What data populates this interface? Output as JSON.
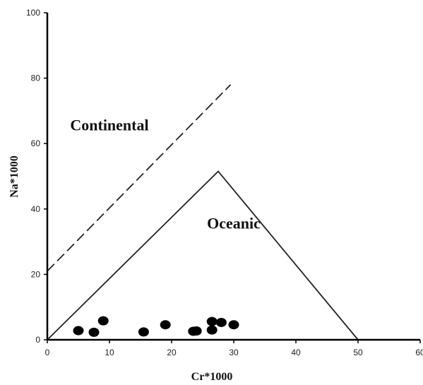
{
  "chart_data": {
    "type": "scatter",
    "xlabel": "Cr*1000",
    "ylabel": "Na*1000",
    "xlim": [
      0,
      60
    ],
    "ylim": [
      0,
      100
    ],
    "xticks": [
      "0",
      "10",
      "20",
      "30",
      "40",
      "50",
      "60"
    ],
    "yticks": [
      "0",
      "20",
      "40",
      "60",
      "80",
      "100"
    ],
    "points": [
      {
        "x": 5,
        "y": 2.8
      },
      {
        "x": 7.5,
        "y": 2.3
      },
      {
        "x": 9,
        "y": 5.8
      },
      {
        "x": 15.5,
        "y": 2.4
      },
      {
        "x": 19,
        "y": 4.6
      },
      {
        "x": 23.5,
        "y": 2.6
      },
      {
        "x": 24,
        "y": 2.7
      },
      {
        "x": 26.5,
        "y": 5.6
      },
      {
        "x": 26.5,
        "y": 3.0
      },
      {
        "x": 28,
        "y": 5.3
      },
      {
        "x": 30,
        "y": 4.6
      }
    ],
    "regions": [
      {
        "label": "Continental",
        "label_at": {
          "x": 10,
          "y": 64
        }
      },
      {
        "label": "Oceanic",
        "label_at": {
          "x": 30,
          "y": 34
        }
      }
    ],
    "boundaries": [
      {
        "name": "continental-boundary",
        "style": "dashed",
        "points": [
          {
            "x": 0,
            "y": 21
          },
          {
            "x": 29.5,
            "y": 78
          }
        ]
      },
      {
        "name": "oceanic-triangle",
        "style": "solid",
        "points": [
          {
            "x": 0,
            "y": 0
          },
          {
            "x": 27.5,
            "y": 51.5
          },
          {
            "x": 50,
            "y": 0
          }
        ]
      }
    ],
    "grid": false,
    "marker_color": "#000000"
  }
}
